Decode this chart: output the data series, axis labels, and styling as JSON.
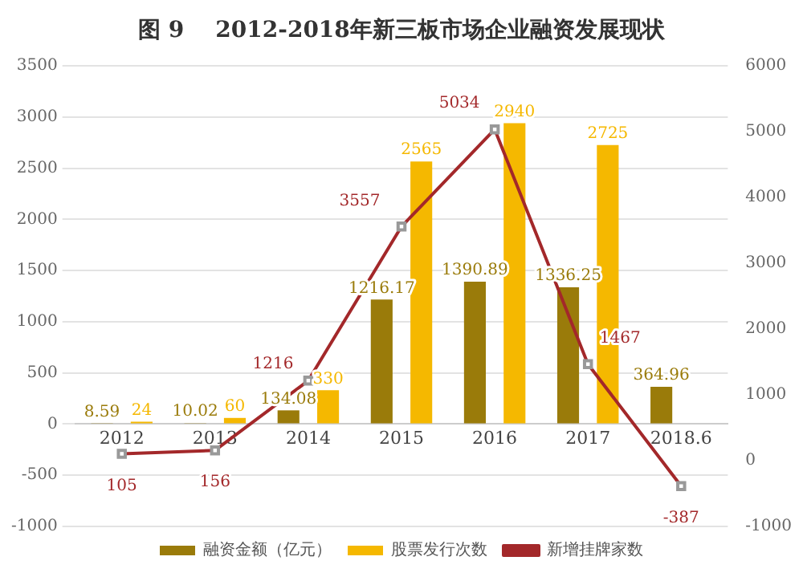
{
  "chart_data": {
    "type": "bar",
    "title": "图 9    2012-2018年新三板市场企业融资发展现状",
    "categories": [
      "2012",
      "2013",
      "2014",
      "2015",
      "2016",
      "2017",
      "2018.6"
    ],
    "series": [
      {
        "name": "融资金额（亿元）",
        "color": "#9a7b0a",
        "values": [
          8.59,
          10.02,
          134.08,
          1216.17,
          1390.89,
          1336.25,
          364.96
        ]
      },
      {
        "name": "股票发行次数",
        "color": "#f5b800",
        "values": [
          24,
          60,
          330,
          2565,
          2940,
          2725,
          null
        ]
      },
      {
        "name": "新增挂牌家数",
        "type": "line",
        "axis": "y2",
        "color": "#a3282a",
        "marker": "square",
        "values": [
          105,
          156,
          1216,
          3557,
          5034,
          1467,
          -387
        ]
      }
    ],
    "ylim": [
      -1000,
      3500
    ],
    "yticks": [
      -1000,
      -500,
      0,
      500,
      1000,
      1500,
      2000,
      2500,
      3000,
      3500
    ],
    "y2lim": [
      -1000,
      6000
    ],
    "y2ticks": [
      -1000,
      0,
      1000,
      2000,
      3000,
      4000,
      5000,
      6000
    ],
    "grid": "y",
    "legend": "bottom",
    "data_labels": true
  }
}
